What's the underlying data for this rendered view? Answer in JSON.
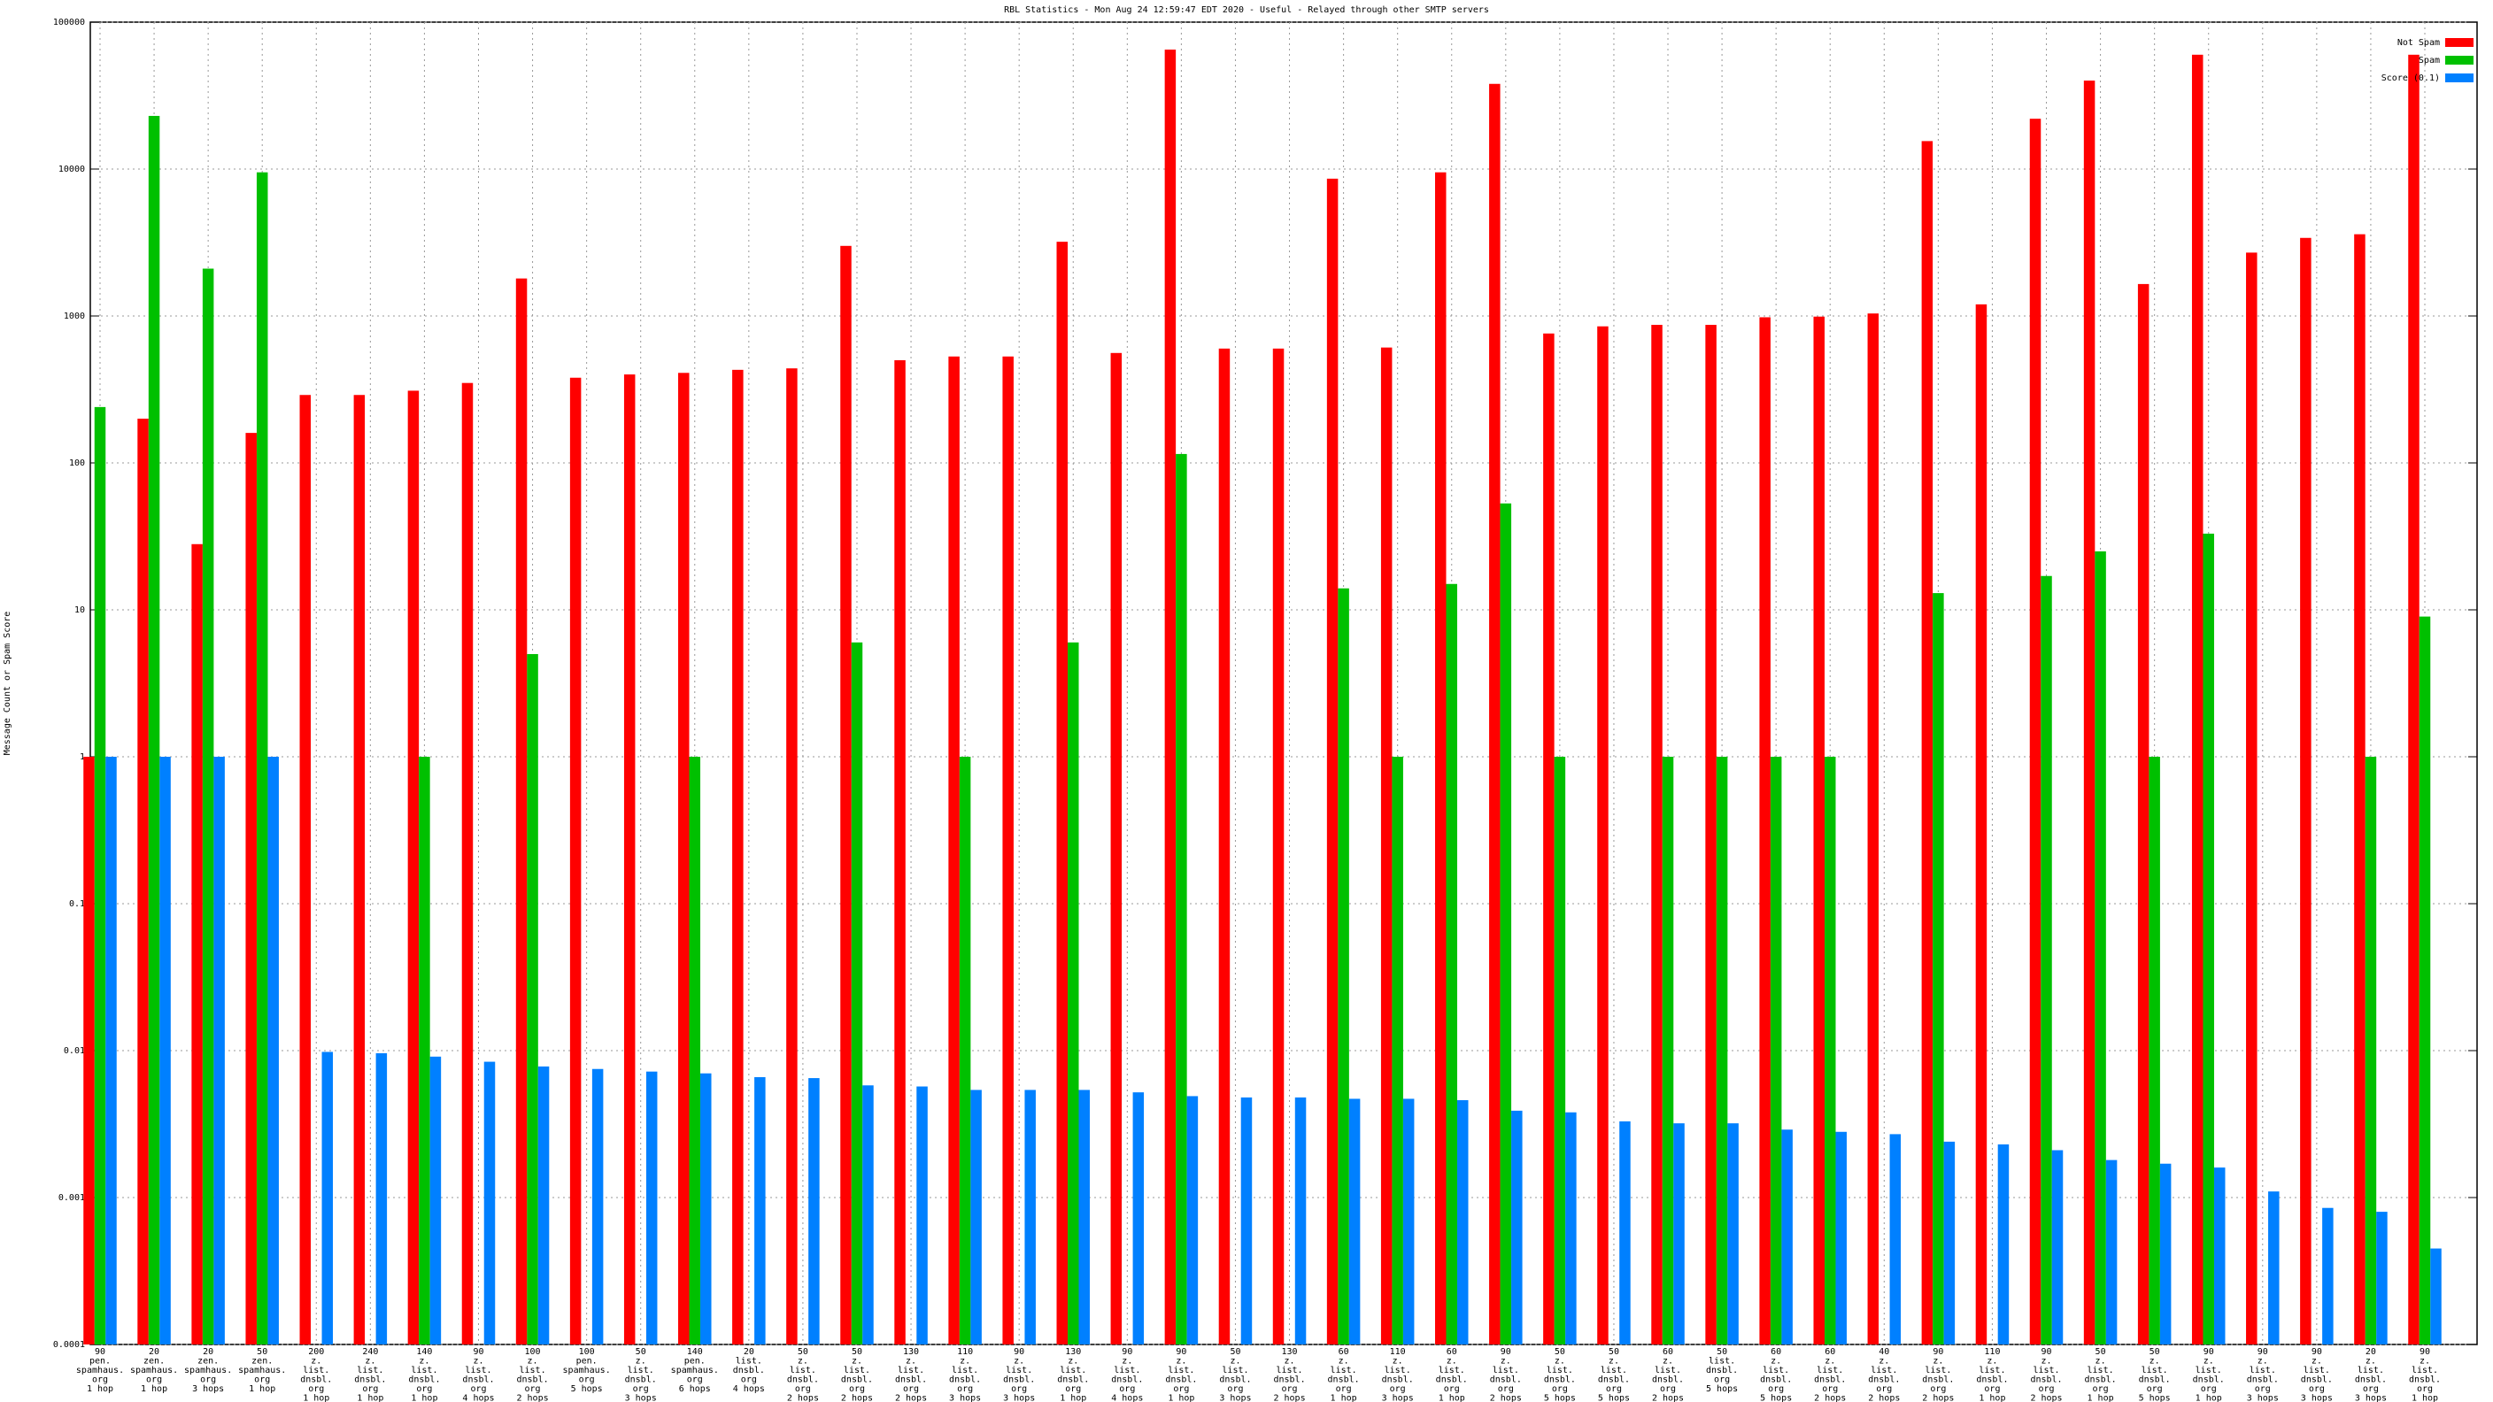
{
  "chart_data": {
    "type": "bar",
    "title": "RBL Statistics - Mon Aug 24 12:59:47 EDT 2020 - Useful - Relayed through other SMTP servers",
    "y_label": "Message Count or Spam Score",
    "log_scale": true,
    "grid": true,
    "legend": "top-right",
    "ylim": [
      0.0001,
      100000
    ],
    "yticks": [
      0.0001,
      0.001,
      0.01,
      0.1,
      1,
      10,
      100,
      1000,
      10000,
      100000
    ],
    "categories": [
      [
        "90",
        "pen.",
        "spamhaus.",
        "org",
        "1 hop"
      ],
      [
        "20",
        "zen.",
        "spamhaus.",
        "org",
        "1 hop"
      ],
      [
        "20",
        "zen.",
        "spamhaus.",
        "org",
        "3 hops"
      ],
      [
        "50",
        "zen.",
        "spamhaus.",
        "org",
        "1 hop"
      ],
      [
        "200",
        "z.",
        "list.",
        "dnsbl.",
        "org",
        "1 hop"
      ],
      [
        "240",
        "z.",
        "list.",
        "dnsbl.",
        "org",
        "1 hop"
      ],
      [
        "140",
        "z.",
        "list.",
        "dnsbl.",
        "org",
        "1 hop"
      ],
      [
        "90",
        "z.",
        "list.",
        "dnsbl.",
        "org",
        "4 hops"
      ],
      [
        "100",
        "z.",
        "list.",
        "dnsbl.",
        "org",
        "2 hops"
      ],
      [
        "100",
        "pen.",
        "spamhaus.",
        "org",
        "5 hops"
      ],
      [
        "50",
        "z.",
        "list.",
        "dnsbl.",
        "org",
        "3 hops"
      ],
      [
        "140",
        "pen.",
        "spamhaus.",
        "org",
        "6 hops"
      ],
      [
        "20",
        "list.",
        "dnsbl.",
        "org",
        "4 hops"
      ],
      [
        "50",
        "z.",
        "list.",
        "dnsbl.",
        "org",
        "2 hops"
      ],
      [
        "50",
        "z.",
        "list.",
        "dnsbl.",
        "org",
        "2 hops"
      ],
      [
        "130",
        "z.",
        "list.",
        "dnsbl.",
        "org",
        "2 hops"
      ],
      [
        "110",
        "z.",
        "list.",
        "dnsbl.",
        "org",
        "3 hops"
      ],
      [
        "90",
        "z.",
        "list.",
        "dnsbl.",
        "org",
        "3 hops"
      ],
      [
        "130",
        "z.",
        "list.",
        "dnsbl.",
        "org",
        "1 hop"
      ],
      [
        "90",
        "z.",
        "list.",
        "dnsbl.",
        "org",
        "4 hops"
      ],
      [
        "90",
        "z.",
        "list.",
        "dnsbl.",
        "org",
        "1 hop"
      ],
      [
        "50",
        "z.",
        "list.",
        "dnsbl.",
        "org",
        "3 hops"
      ],
      [
        "130",
        "z.",
        "list.",
        "dnsbl.",
        "org",
        "2 hops"
      ],
      [
        "60",
        "z.",
        "list.",
        "dnsbl.",
        "org",
        "1 hop"
      ],
      [
        "110",
        "z.",
        "list.",
        "dnsbl.",
        "org",
        "3 hops"
      ],
      [
        "60",
        "z.",
        "list.",
        "dnsbl.",
        "org",
        "1 hop"
      ],
      [
        "90",
        "z.",
        "list.",
        "dnsbl.",
        "org",
        "2 hops"
      ],
      [
        "50",
        "z.",
        "list.",
        "dnsbl.",
        "org",
        "5 hops"
      ],
      [
        "50",
        "z.",
        "list.",
        "dnsbl.",
        "org",
        "5 hops"
      ],
      [
        "60",
        "z.",
        "list.",
        "dnsbl.",
        "org",
        "2 hops"
      ],
      [
        "50",
        "list.",
        "dnsbl.",
        "org",
        "5 hops"
      ],
      [
        "60",
        "z.",
        "list.",
        "dnsbl.",
        "org",
        "5 hops"
      ],
      [
        "60",
        "z.",
        "list.",
        "dnsbl.",
        "org",
        "2 hops"
      ],
      [
        "40",
        "z.",
        "list.",
        "dnsbl.",
        "org",
        "2 hops"
      ],
      [
        "90",
        "z.",
        "list.",
        "dnsbl.",
        "org",
        "2 hops"
      ],
      [
        "110",
        "z.",
        "list.",
        "dnsbl.",
        "org",
        "1 hop"
      ],
      [
        "90",
        "z.",
        "list.",
        "dnsbl.",
        "org",
        "2 hops"
      ],
      [
        "50",
        "z.",
        "list.",
        "dnsbl.",
        "org",
        "1 hop"
      ],
      [
        "50",
        "z.",
        "list.",
        "dnsbl.",
        "org",
        "5 hops"
      ],
      [
        "90",
        "z.",
        "list.",
        "dnsbl.",
        "org",
        "1 hop"
      ],
      [
        "90",
        "z.",
        "list.",
        "dnsbl.",
        "org",
        "3 hops"
      ],
      [
        "90",
        "z.",
        "list.",
        "dnsbl.",
        "org",
        "3 hops"
      ],
      [
        "20",
        "z.",
        "list.",
        "dnsbl.",
        "org",
        "3 hops"
      ],
      [
        "90",
        "z.",
        "list.",
        "dnsbl.",
        "org",
        "1 hop"
      ]
    ],
    "series": [
      {
        "name": "Not Spam",
        "color": "#ff0000",
        "values": [
          1,
          200,
          28,
          160,
          290,
          290,
          310,
          350,
          1800,
          380,
          400,
          410,
          430,
          440,
          3000,
          500,
          530,
          530,
          3200,
          560,
          65000,
          600,
          600,
          8600,
          610,
          9500,
          38000,
          760,
          850,
          870,
          870,
          980,
          990,
          1040,
          15500,
          1200,
          22000,
          40000,
          1650,
          60000,
          2700,
          3400,
          3600,
          60000
        ]
      },
      {
        "name": "Spam",
        "color": "#00c000",
        "values": [
          240,
          23000,
          2100,
          9500,
          null,
          null,
          1,
          null,
          5,
          null,
          null,
          1,
          null,
          null,
          6,
          null,
          1,
          null,
          6,
          null,
          115,
          null,
          null,
          14,
          1,
          15,
          53,
          1,
          null,
          1,
          1,
          1,
          1,
          null,
          13,
          null,
          17,
          25,
          1,
          33,
          null,
          null,
          1,
          9
        ]
      },
      {
        "name": "Score (0.1)",
        "color": "#0080ff",
        "values": [
          1,
          1,
          1,
          1,
          0.0098,
          0.0096,
          0.0091,
          0.0084,
          0.0078,
          0.0075,
          0.0072,
          0.007,
          0.0066,
          0.0065,
          0.0058,
          0.0057,
          0.0054,
          0.0054,
          0.0054,
          0.0052,
          0.0049,
          0.0048,
          0.0048,
          0.0047,
          0.0047,
          0.0046,
          0.0039,
          0.0038,
          0.0033,
          0.0032,
          0.0032,
          0.0029,
          0.0028,
          0.0027,
          0.0024,
          0.0023,
          0.0021,
          0.0018,
          0.0017,
          0.0016,
          0.0011,
          0.00085,
          0.0008,
          0.00045
        ]
      }
    ]
  }
}
